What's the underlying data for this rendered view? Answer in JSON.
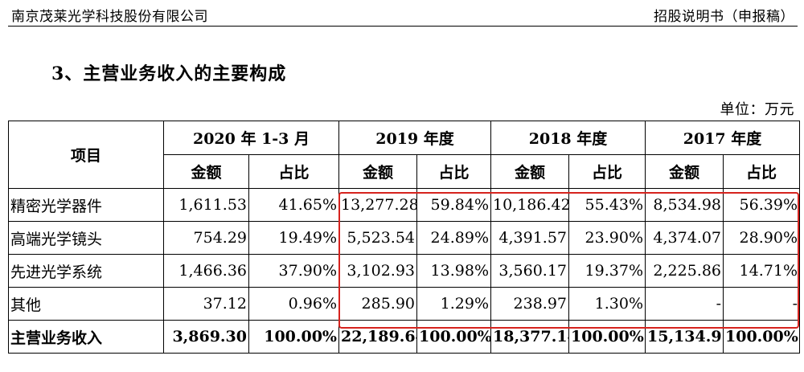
{
  "header": {
    "company": "南京茂莱光学科技股份有限公司",
    "doc_type": "招股说明书（申报稿）"
  },
  "section_title": "3、主营业务收入的主要构成",
  "unit": "单位：万元",
  "table": {
    "item_header": "项目",
    "periods": [
      "2020 年 1-3 月",
      "2019 年度",
      "2018 年度",
      "2017 年度"
    ],
    "sub_headers": {
      "amount": "金额",
      "ratio": "占比"
    },
    "rows": [
      {
        "name": "精密光学器件",
        "cells": [
          "1,611.53",
          "41.65%",
          "13,277.28",
          "59.84%",
          "10,186.42",
          "55.43%",
          "8,534.98",
          "56.39%"
        ]
      },
      {
        "name": "高端光学镜头",
        "cells": [
          "754.29",
          "19.49%",
          "5,523.54",
          "24.89%",
          "4,391.57",
          "23.90%",
          "4,374.07",
          "28.90%"
        ]
      },
      {
        "name": "先进光学系统",
        "cells": [
          "1,466.36",
          "37.90%",
          "3,102.93",
          "13.98%",
          "3,560.17",
          "19.37%",
          "2,225.86",
          "14.71%"
        ]
      },
      {
        "name": "其他",
        "cells": [
          "37.12",
          "0.96%",
          "285.90",
          "1.29%",
          "238.97",
          "1.30%",
          "-",
          "-"
        ]
      }
    ],
    "total": {
      "name": "主营业务收入",
      "cells": [
        "3,869.30",
        "100.00%",
        "22,189.64",
        "100.00%",
        "18,377.14",
        "100.00%",
        "15,134.91",
        "100.00%"
      ]
    }
  },
  "highlight_color": "#d6231e"
}
